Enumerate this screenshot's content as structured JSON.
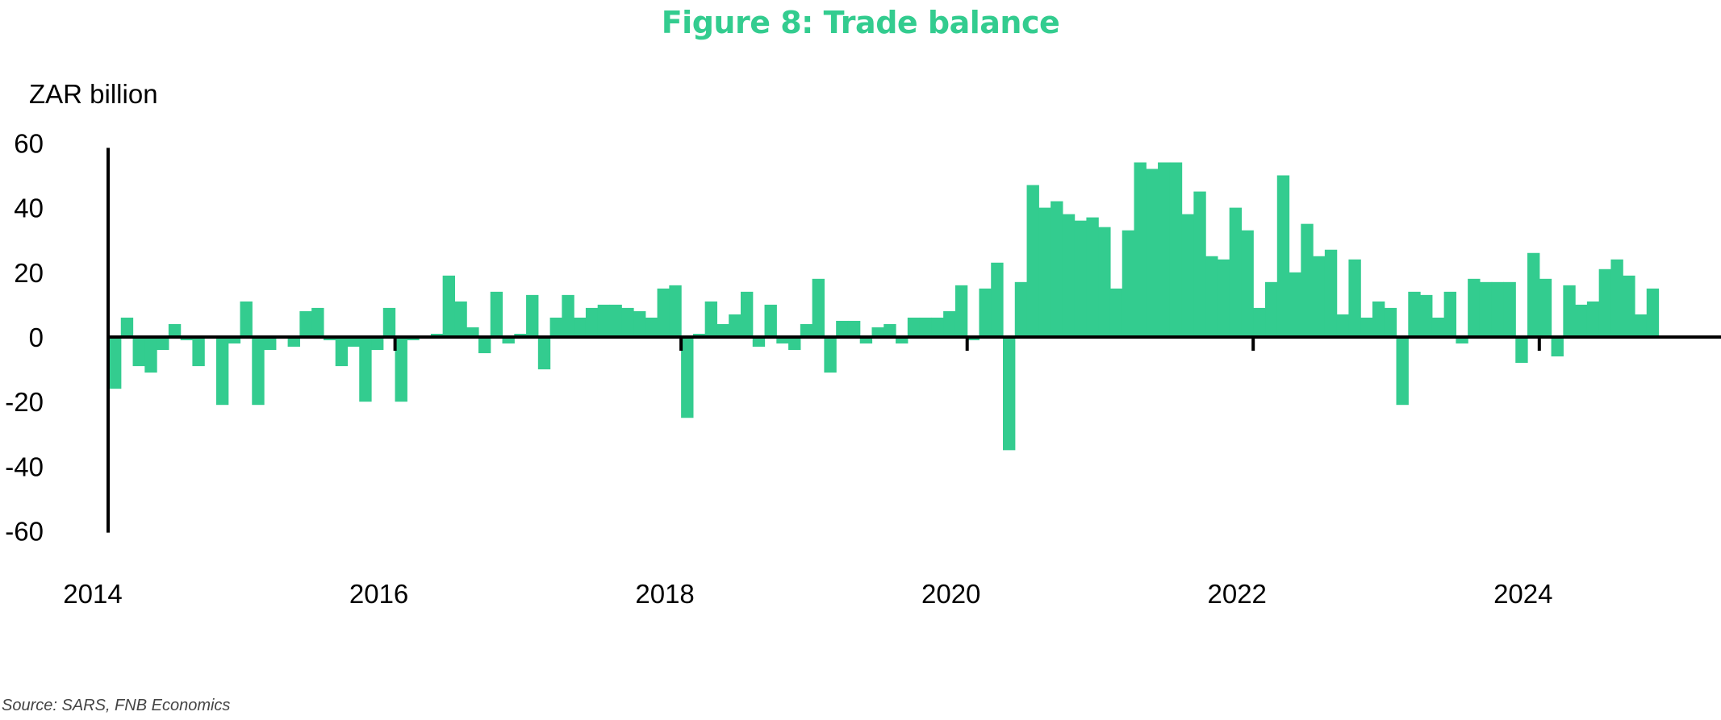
{
  "title": "Figure 8: Trade balance",
  "unit_label": "ZAR billion",
  "source": "Source: SARS, FNB Economics",
  "colors": {
    "bar": "#33cc8f",
    "title": "#33cc8f",
    "axis": "#000000"
  },
  "chart_data": {
    "type": "bar",
    "title": "Figure 8: Trade balance",
    "ylabel": "ZAR billion",
    "xlabel": "",
    "ylim": [
      -60,
      60
    ],
    "y_ticks": [
      "60",
      "40",
      "20",
      "0",
      "-20",
      "-40",
      "-60"
    ],
    "x_ticks": [
      "2014",
      "2016",
      "2018",
      "2020",
      "2022",
      "2024"
    ],
    "grid": false,
    "legend": "none",
    "start": "2014-01",
    "frequency": "monthly",
    "values": [
      -16,
      6,
      -9,
      -11,
      -4,
      4,
      -1,
      -9,
      0,
      -21,
      -2,
      11,
      -21,
      -4,
      0,
      -3,
      8,
      9,
      -1,
      -9,
      -3,
      -20,
      -4,
      9,
      -20,
      -1,
      0,
      1,
      19,
      11,
      3,
      -5,
      14,
      -2,
      1,
      13,
      -10,
      6,
      13,
      6,
      9,
      10,
      10,
      9,
      8,
      6,
      15,
      16,
      -25,
      1,
      11,
      4,
      7,
      14,
      -3,
      10,
      -2,
      -4,
      4,
      18,
      -11,
      5,
      5,
      -2,
      3,
      4,
      -2,
      6,
      6,
      6,
      8,
      16,
      -1,
      15,
      23,
      -35,
      17,
      47,
      40,
      42,
      38,
      36,
      37,
      34,
      15,
      33,
      54,
      52,
      54,
      54,
      38,
      45,
      25,
      24,
      40,
      33,
      9,
      17,
      50,
      20,
      35,
      25,
      27,
      7,
      24,
      6,
      11,
      9,
      -21,
      14,
      13,
      6,
      14,
      -2,
      18,
      17,
      17,
      17,
      -8,
      26,
      18,
      -6,
      16,
      10,
      11,
      21,
      24,
      19,
      7,
      15
    ]
  }
}
